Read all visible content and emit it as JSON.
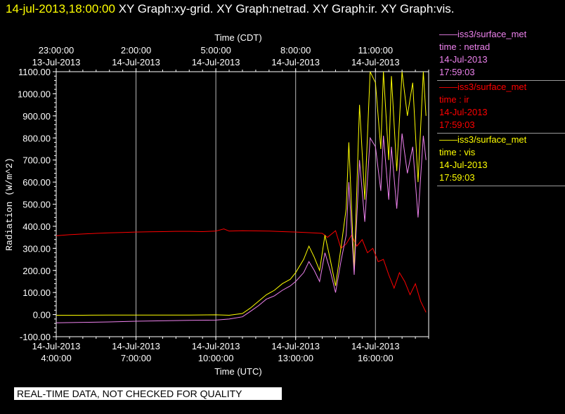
{
  "header": {
    "date_time": "14-jul-2013,18:00:00",
    "graphs": "XY Graph:xy-grid.  XY Graph:netrad.  XY Graph:ir.  XY Graph:vis."
  },
  "colors": {
    "netrad": "#ee82ee",
    "ir": "#ff0000",
    "vis": "#ffff00",
    "grid": "#ffffff"
  },
  "legend": [
    {
      "source": "iss3/surface_met",
      "variable": "time : netrad",
      "date": "14-Jul-2013",
      "time": "17:59:03",
      "color": "#ee82ee"
    },
    {
      "source": "iss3/surface_met",
      "variable": "time : ir",
      "date": "14-Jul-2013",
      "time": "17:59:03",
      "color": "#ff0000"
    },
    {
      "source": "iss3/surface_met",
      "variable": "time : vis",
      "date": "14-Jul-2013",
      "time": "17:59:03",
      "color": "#ffff00"
    }
  ],
  "footer": {
    "qc_note": "REAL-TIME DATA, NOT CHECKED FOR QUALITY"
  },
  "chart_data": {
    "type": "line",
    "ylabel": "Radiation (W/m^2)",
    "ylim": [
      -100,
      1100
    ],
    "y_ticks": [
      "-100.00",
      "0.00",
      "100.00",
      "200.00",
      "300.00",
      "400.00",
      "500.00",
      "600.00",
      "700.00",
      "800.00",
      "900.00",
      "1000.00",
      "1100.00"
    ],
    "xlabel": "Time (UTC)",
    "x_unit": "hours UTC since 14-Jul-2013 00:00",
    "xlim": [
      4,
      18
    ],
    "x_ticks_bottom": [
      {
        "x": 4,
        "date": "14-Jul-2013",
        "time": "4:00:00"
      },
      {
        "x": 7,
        "date": "14-Jul-2013",
        "time": "7:00:00"
      },
      {
        "x": 10,
        "date": "14-Jul-2013",
        "time": "10:00:00"
      },
      {
        "x": 13,
        "date": "14-Jul-2013",
        "time": "13:00:00"
      },
      {
        "x": 16,
        "date": "14-Jul-2013",
        "time": "16:00:00"
      }
    ],
    "x2label": "Time (CDT)",
    "x_ticks_top": [
      {
        "x": 4,
        "time": "23:00:00",
        "date": "13-Jul-2013"
      },
      {
        "x": 7,
        "time": "2:00:00",
        "date": "14-Jul-2013"
      },
      {
        "x": 10,
        "time": "5:00:00",
        "date": "14-Jul-2013"
      },
      {
        "x": 13,
        "time": "8:00:00",
        "date": "14-Jul-2013"
      },
      {
        "x": 16,
        "time": "11:00:00",
        "date": "14-Jul-2013"
      }
    ],
    "grid": true,
    "series": [
      {
        "name": "ir",
        "color": "#ff0000",
        "x": [
          4.0,
          4.5,
          5.0,
          5.5,
          6.0,
          6.5,
          7.0,
          7.5,
          8.0,
          8.5,
          9.0,
          9.5,
          10.0,
          10.3,
          10.5,
          11.0,
          11.5,
          12.0,
          12.5,
          13.0,
          13.5,
          14.0,
          14.2,
          14.5,
          14.7,
          14.9,
          15.1,
          15.3,
          15.5,
          15.7,
          15.9,
          16.1,
          16.3,
          16.5,
          16.7,
          16.9,
          17.1,
          17.3,
          17.5,
          17.7,
          17.9
        ],
        "y": [
          357,
          362,
          365,
          368,
          370,
          372,
          374,
          375,
          376,
          377,
          377,
          376,
          378,
          388,
          378,
          380,
          379,
          378,
          376,
          374,
          371,
          368,
          350,
          380,
          300,
          320,
          360,
          310,
          340,
          280,
          300,
          240,
          250,
          180,
          120,
          190,
          150,
          90,
          140,
          60,
          10
        ]
      },
      {
        "name": "vis",
        "color": "#ffff00",
        "x": [
          4.0,
          5.0,
          6.0,
          7.0,
          8.0,
          9.0,
          10.0,
          10.5,
          11.0,
          11.3,
          11.6,
          11.9,
          12.2,
          12.5,
          12.8,
          13.0,
          13.3,
          13.5,
          13.7,
          13.9,
          14.1,
          14.3,
          14.5,
          14.7,
          14.9,
          15.0,
          15.2,
          15.4,
          15.6,
          15.8,
          16.0,
          16.2,
          16.3,
          16.5,
          16.6,
          16.8,
          17.0,
          17.2,
          17.4,
          17.6,
          17.8,
          17.9
        ],
        "y": [
          -3,
          -3,
          -2,
          -2,
          -2,
          -2,
          -1,
          -3,
          5,
          30,
          60,
          90,
          110,
          140,
          160,
          190,
          250,
          310,
          260,
          200,
          360,
          250,
          130,
          300,
          480,
          780,
          200,
          950,
          520,
          1100,
          1050,
          750,
          1100,
          700,
          1080,
          650,
          1100,
          900,
          1050,
          600,
          1100,
          900
        ]
      },
      {
        "name": "netrad",
        "color": "#ee82ee",
        "x": [
          4.0,
          5.0,
          6.0,
          7.0,
          8.0,
          9.0,
          10.0,
          10.5,
          11.0,
          11.3,
          11.6,
          11.9,
          12.2,
          12.5,
          12.8,
          13.0,
          13.3,
          13.5,
          13.7,
          13.9,
          14.1,
          14.3,
          14.5,
          14.7,
          14.9,
          15.0,
          15.2,
          15.4,
          15.6,
          15.8,
          16.0,
          16.2,
          16.3,
          16.5,
          16.6,
          16.8,
          17.0,
          17.2,
          17.4,
          17.6,
          17.8,
          17.9
        ],
        "y": [
          -37,
          -35,
          -33,
          -30,
          -28,
          -26,
          -25,
          -20,
          -10,
          15,
          40,
          70,
          85,
          110,
          130,
          150,
          190,
          240,
          200,
          150,
          280,
          200,
          100,
          240,
          360,
          600,
          180,
          700,
          420,
          800,
          760,
          560,
          810,
          520,
          760,
          480,
          820,
          640,
          760,
          440,
          810,
          700
        ]
      }
    ]
  }
}
